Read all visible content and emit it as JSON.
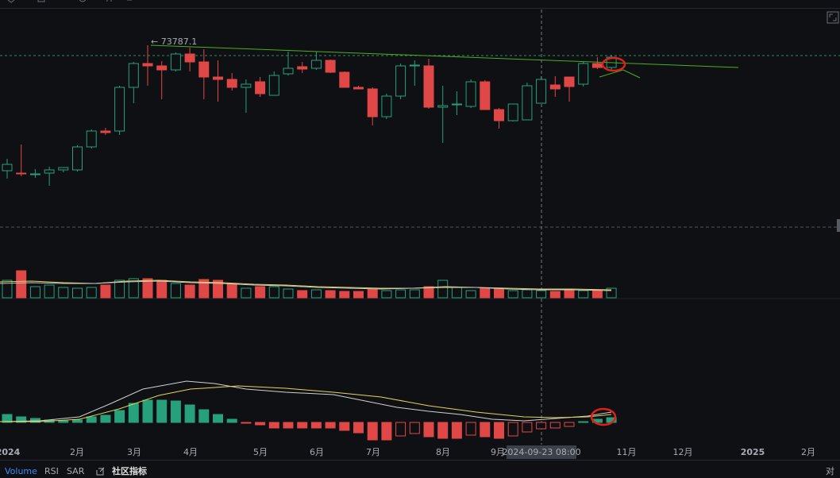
{
  "chart_data": {
    "type": "candlestick",
    "price_label": "73787.1",
    "crosshair_label": "2024-09-23 08:00",
    "x_labels": [
      "2024",
      "2月",
      "3月",
      "4月",
      "5月",
      "6月",
      "7月",
      "8月",
      "9月",
      "11月",
      "12月",
      "2025",
      "2月"
    ],
    "tabs": [
      "Volume",
      "RSI",
      "SAR",
      "社区指标",
      "对"
    ],
    "ylim": [
      28295,
      83375
    ],
    "up_color": "#26a17b",
    "down_color": "#e04848",
    "candles": {
      "open": [
        41555,
        40943,
        40739,
        40943,
        41759,
        41759,
        47675,
        51755,
        51755,
        62975,
        69095,
        68483,
        67463,
        71543,
        69503,
        65627,
        65015,
        62975,
        64403,
        60935,
        66443,
        68279,
        67871,
        69911,
        66851,
        62975,
        62567,
        55427,
        60731,
        68483,
        68483,
        57875,
        58487,
        58079,
        64403,
        57263,
        54407,
        54611,
        58895,
        63587,
        65627,
        63791,
        69095,
        68075
      ],
      "high": [
        44615,
        48287,
        41963,
        42575,
        42371,
        48083,
        52163,
        52571,
        63383,
        69503,
        73787.1,
        69707,
        71951,
        73175,
        72767,
        69911,
        66647,
        65015,
        65627,
        67055,
        72155,
        69503,
        72155,
        70115,
        67055,
        63383,
        62975,
        61343,
        69095,
        69911,
        70319,
        63383,
        61955,
        65015,
        64811,
        57671,
        56855,
        64199,
        65831,
        65831,
        65015,
        69503,
        70727,
        71339
      ],
      "low": [
        39515,
        40127,
        39719,
        37679,
        41147,
        41351,
        47267,
        50735,
        50735,
        58895,
        63383,
        59915,
        67055,
        67055,
        59915,
        59303,
        62159,
        56447,
        60527,
        60935,
        66035,
        66647,
        67463,
        66647,
        63179,
        62567,
        53183,
        54815,
        59915,
        63383,
        57467,
        48695,
        55835,
        57671,
        57263,
        52367,
        54203,
        58487,
        63179,
        60527,
        59303,
        63179,
        67667,
        67463
      ],
      "close": [
        43187,
        40739,
        40739,
        41759,
        42371,
        47675,
        51755,
        51347,
        62975,
        69095,
        68483,
        67463,
        71543,
        69503,
        65627,
        65015,
        62975,
        63791,
        61343,
        66035,
        67871,
        67667,
        69911,
        66851,
        62975,
        62567,
        55427,
        60731,
        68483,
        68687,
        57875,
        58283,
        58691,
        64403,
        57263,
        54407,
        58691,
        63383,
        65015,
        62567,
        63179,
        69095,
        68075,
        70727
      ]
    },
    "vlim": [
      0,
      40
    ],
    "volume": [
      22,
      34,
      14,
      16,
      13,
      12,
      13,
      16,
      22,
      24,
      24,
      22,
      18,
      16,
      23,
      22,
      18,
      12,
      14,
      14,
      11,
      9,
      10,
      9,
      8,
      8,
      11,
      9,
      10,
      10,
      14,
      22,
      13,
      9,
      12,
      12,
      9,
      10,
      9,
      8,
      9,
      9,
      10,
      12
    ],
    "mlim": [
      -40,
      40
    ],
    "macd": [
      10,
      7,
      5,
      3,
      2,
      3,
      7,
      9,
      15,
      24,
      28,
      28,
      27,
      22,
      16,
      10,
      4,
      -1,
      -3,
      -7,
      -7,
      -7,
      -7,
      -7,
      -10,
      -13,
      -22,
      -22,
      -17,
      -14,
      -18,
      -20,
      -20,
      -16,
      -18,
      -20,
      -17,
      -12,
      -8,
      -7,
      -5,
      1,
      4,
      6
    ]
  }
}
